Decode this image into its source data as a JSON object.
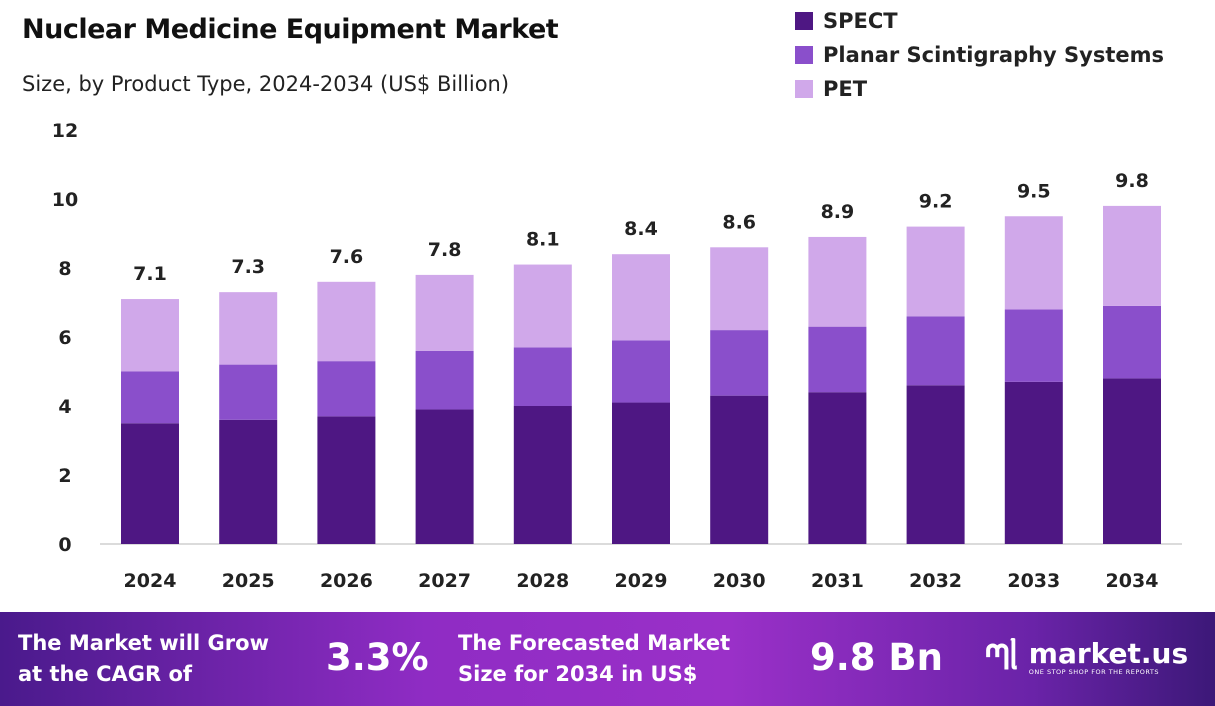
{
  "chart_data": {
    "type": "bar",
    "stacked": true,
    "title": "Nuclear Medicine Equipment Market",
    "subtitle": "Size, by Product Type, 2024-2034 (US$ Billion)",
    "categories": [
      "2024",
      "2025",
      "2026",
      "2027",
      "2028",
      "2029",
      "2030",
      "2031",
      "2032",
      "2033",
      "2034"
    ],
    "series": [
      {
        "name": "SPECT",
        "color": "#4e1783",
        "values": [
          3.5,
          3.6,
          3.7,
          3.9,
          4.0,
          4.1,
          4.3,
          4.4,
          4.6,
          4.7,
          4.8
        ]
      },
      {
        "name": "Planar Scintigraphy Systems",
        "color": "#8a4fcb",
        "values": [
          1.5,
          1.6,
          1.6,
          1.7,
          1.7,
          1.8,
          1.9,
          1.9,
          2.0,
          2.1,
          2.1
        ]
      },
      {
        "name": "PET",
        "color": "#d0a8ea",
        "values": [
          2.1,
          2.1,
          2.3,
          2.2,
          2.4,
          2.5,
          2.4,
          2.6,
          2.6,
          2.7,
          2.9
        ]
      }
    ],
    "totals": [
      "7.1",
      "7.3",
      "7.6",
      "7.8",
      "8.1",
      "8.4",
      "8.6",
      "8.9",
      "9.2",
      "9.5",
      "9.8"
    ],
    "yticks": [
      "0",
      "2",
      "4",
      "6",
      "8",
      "10",
      "12"
    ],
    "ylim": [
      0,
      12
    ],
    "grid": false,
    "legend_position": "top-right"
  },
  "footer": {
    "cagr_text": [
      "The Market will Grow",
      "at the CAGR of"
    ],
    "cagr_value": "3.3%",
    "forecast_text": [
      "The Forecasted Market",
      "Size for 2034 in US$"
    ],
    "forecast_value": "9.8 Bn",
    "logo_name": "market.us",
    "logo_tagline": "ONE STOP SHOP FOR THE REPORTS"
  }
}
